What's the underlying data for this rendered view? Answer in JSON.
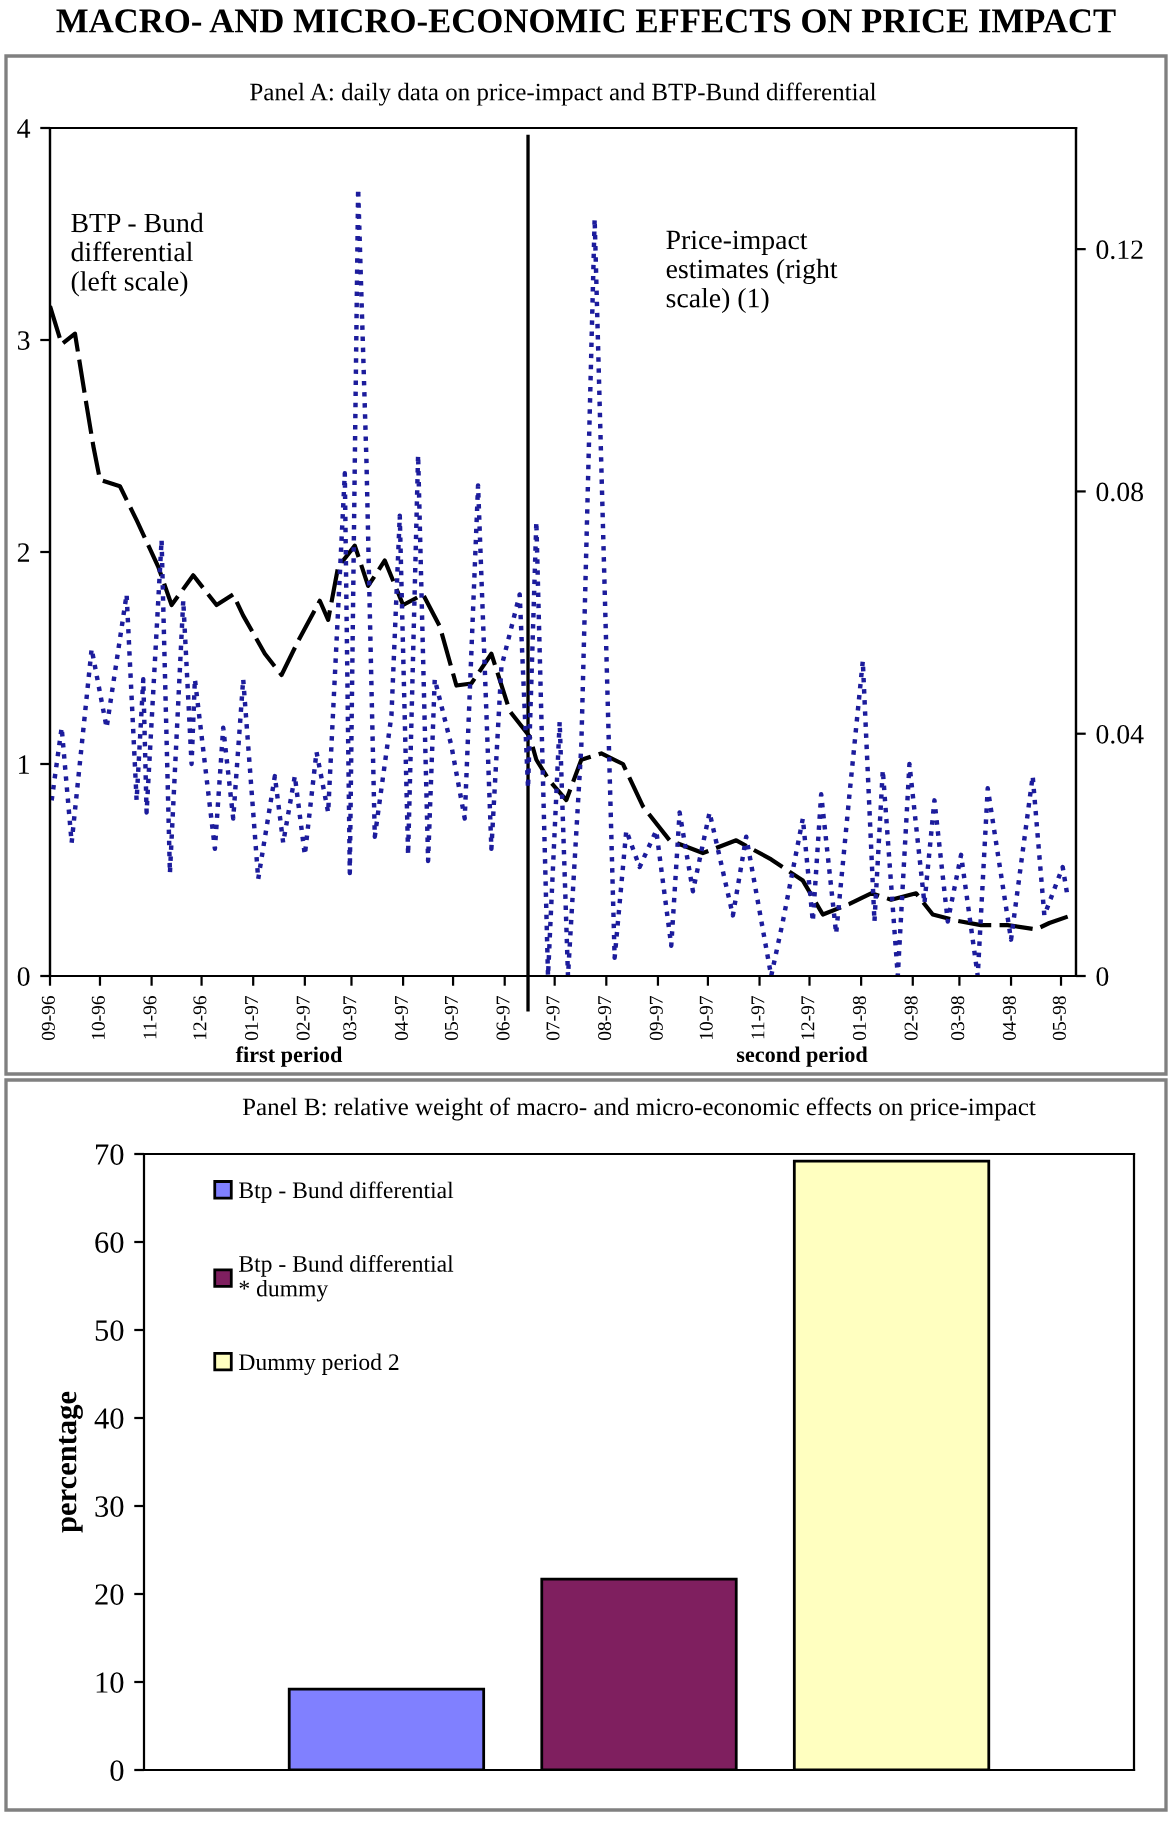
{
  "chart_data": [
    {
      "type": "line",
      "title": "MACRO- AND MICRO-ECONOMIC EFFECTS ON PRICE IMPACT",
      "subtitle": "Panel A: daily data on price-impact and BTP-Bund differential",
      "xlim": [
        "1996-09-01",
        "1998-05-10"
      ],
      "xticks": [
        {
          "value": "1996-09-01",
          "label": "09-96"
        },
        {
          "value": "1996-10-01",
          "label": "10-96"
        },
        {
          "value": "1996-11-01",
          "label": "11-96"
        },
        {
          "value": "1996-12-01",
          "label": "12-96"
        },
        {
          "value": "1997-01-01",
          "label": "01-97"
        },
        {
          "value": "1997-02-01",
          "label": "02-97"
        },
        {
          "value": "1997-03-01",
          "label": "03-97"
        },
        {
          "value": "1997-04-01",
          "label": "04-97"
        },
        {
          "value": "1997-05-01",
          "label": "05-97"
        },
        {
          "value": "1997-06-01",
          "label": "06-97"
        },
        {
          "value": "1997-07-01",
          "label": "07-97"
        },
        {
          "value": "1997-08-01",
          "label": "08-97"
        },
        {
          "value": "1997-09-01",
          "label": "09-97"
        },
        {
          "value": "1997-10-01",
          "label": "10-97"
        },
        {
          "value": "1997-11-01",
          "label": "11-97"
        },
        {
          "value": "1997-12-01",
          "label": "12-97"
        },
        {
          "value": "1998-01-01",
          "label": "01-98"
        },
        {
          "value": "1998-02-01",
          "label": "02-98"
        },
        {
          "value": "1998-03-01",
          "label": "03-98"
        },
        {
          "value": "1998-04-01",
          "label": "04-98"
        },
        {
          "value": "1998-05-01",
          "label": "05-98"
        }
      ],
      "ylim": [
        0,
        4
      ],
      "yticks": [
        0,
        1,
        2,
        3,
        4
      ],
      "y2lim": [
        0,
        0.14
      ],
      "y2ticks": [
        0,
        0.04,
        0.08,
        0.12
      ],
      "series": [
        {
          "name": "BTP - Bund\ndifferential\n(left scale)",
          "color": "#000000",
          "line_style": "dashed",
          "x": [
            "1996-09-01",
            "1996-09-08",
            "1996-09-16",
            "1996-09-23",
            "1996-09-27",
            "1996-10-01",
            "1996-10-13",
            "1996-10-23",
            "1996-11-05",
            "1996-11-13",
            "1996-11-26",
            "1996-12-10",
            "1996-12-20",
            "1996-12-26",
            "1997-01-08",
            "1997-01-18",
            "1997-01-28",
            "1997-02-10",
            "1997-02-15",
            "1997-02-21",
            "1997-03-03",
            "1997-03-11",
            "1997-03-21",
            "1997-04-01",
            "1997-04-13",
            "1997-04-23",
            "1997-05-03",
            "1997-05-12",
            "1997-05-24",
            "1997-06-04",
            "1997-06-16",
            "1997-06-20",
            "1997-06-28",
            "1997-07-08",
            "1997-07-17",
            "1997-07-29",
            "1997-08-11",
            "1997-08-23",
            "1997-09-08",
            "1997-09-28",
            "1997-10-18",
            "1997-11-08",
            "1997-11-27",
            "1997-12-09",
            "1997-12-25",
            "1998-01-07",
            "1998-01-19",
            "1998-02-03",
            "1998-02-13",
            "1998-02-28",
            "1998-03-14",
            "1998-03-30",
            "1998-04-16",
            "1998-04-24",
            "1998-05-05"
          ],
          "values": [
            3.16,
            2.98,
            3.03,
            2.69,
            2.5,
            2.34,
            2.31,
            2.15,
            1.93,
            1.75,
            1.89,
            1.75,
            1.8,
            1.7,
            1.52,
            1.42,
            1.58,
            1.77,
            1.68,
            1.93,
            2.03,
            1.84,
            1.96,
            1.75,
            1.8,
            1.65,
            1.37,
            1.38,
            1.52,
            1.25,
            1.13,
            1.02,
            0.92,
            0.83,
            1.02,
            1.05,
            1.0,
            0.8,
            0.64,
            0.58,
            0.64,
            0.55,
            0.45,
            0.29,
            0.34,
            0.39,
            0.36,
            0.39,
            0.29,
            0.26,
            0.24,
            0.24,
            0.22,
            0.25,
            0.28
          ]
        },
        {
          "name": "Price-impact\nestimates (right\nscale) (1)",
          "color": "#1c1c9c",
          "line_style": "dotted",
          "axis": "y2",
          "x": [
            "1996-09-02",
            "1996-09-08",
            "1996-09-14",
            "1996-09-26",
            "1996-10-05",
            "1996-10-17",
            "1996-10-23",
            "1996-10-27",
            "1996-10-29",
            "1996-11-07",
            "1996-11-12",
            "1996-11-20",
            "1996-11-25",
            "1996-11-27",
            "1996-12-09",
            "1996-12-14",
            "1996-12-20",
            "1996-12-26",
            "1997-01-04",
            "1997-01-14",
            "1997-01-19",
            "1997-01-26",
            "1997-02-01",
            "1997-02-08",
            "1997-02-15",
            "1997-02-25",
            "1997-02-28",
            "1997-03-05",
            "1997-03-10",
            "1997-03-15",
            "1997-03-25",
            "1997-03-30",
            "1997-04-04",
            "1997-04-10",
            "1997-04-16",
            "1997-04-20",
            "1997-04-30",
            "1997-05-08",
            "1997-05-16",
            "1997-05-24",
            "1997-05-30",
            "1997-06-10",
            "1997-06-15",
            "1997-06-20",
            "1997-06-27",
            "1997-07-04",
            "1997-07-09",
            "1997-07-17",
            "1997-07-25",
            "1997-08-06",
            "1997-08-13",
            "1997-08-21",
            "1997-08-31",
            "1997-09-09",
            "1997-09-14",
            "1997-09-22",
            "1997-10-02",
            "1997-10-16",
            "1997-10-24",
            "1997-11-08",
            "1997-11-15",
            "1997-11-27",
            "1997-12-03",
            "1997-12-08",
            "1997-12-17",
            "1997-12-25",
            "1998-01-02",
            "1998-01-09",
            "1998-01-14",
            "1998-01-23",
            "1998-01-30",
            "1998-02-08",
            "1998-02-14",
            "1998-02-22",
            "1998-03-02",
            "1998-03-12",
            "1998-03-18",
            "1998-04-01",
            "1998-04-14",
            "1998-04-21",
            "1998-05-02",
            "1998-05-05"
          ],
          "values": [
            0.029,
            0.041,
            0.022,
            0.054,
            0.041,
            0.063,
            0.029,
            0.049,
            0.027,
            0.072,
            0.017,
            0.062,
            0.035,
            0.049,
            0.021,
            0.041,
            0.026,
            0.049,
            0.016,
            0.033,
            0.022,
            0.033,
            0.02,
            0.037,
            0.027,
            0.083,
            0.017,
            0.13,
            0.085,
            0.023,
            0.043,
            0.076,
            0.02,
            0.086,
            0.019,
            0.049,
            0.038,
            0.026,
            0.081,
            0.021,
            0.051,
            0.063,
            0.031,
            0.075,
            0,
            0.042,
            0,
            0.038,
            0.125,
            0.003,
            0.024,
            0.018,
            0.024,
            0.005,
            0.027,
            0.014,
            0.027,
            0.01,
            0.023,
            0,
            0.009,
            0.026,
            0.009,
            0.03,
            0.007,
            0.03,
            0.052,
            0.009,
            0.034,
            0,
            0.035,
            0.012,
            0.029,
            0.009,
            0.02,
            0,
            0.031,
            0.006,
            0.033,
            0.01,
            0.018,
            0.013
          ]
        }
      ],
      "ref_lines": [
        {
          "axis": "x",
          "value": "1997-06-15",
          "color": "#000000",
          "line_style": "solid"
        }
      ],
      "annotations": [
        "first period",
        "second period"
      ]
    },
    {
      "type": "bar",
      "title": "Panel B: relative weight of macro- and micro-economic effects on price-impact",
      "ylabel": "percentage",
      "categories": [
        null,
        null,
        null
      ],
      "ylim": [
        0,
        70
      ],
      "yticks": [
        0,
        10,
        20,
        30,
        40,
        50,
        60,
        70
      ],
      "legend": "top left",
      "series": [
        {
          "name": "Btp - Bund differential",
          "color": "#8080ff",
          "values": [
            9.2,
            null,
            null
          ]
        },
        {
          "name": "Btp - Bund differential\n* dummy",
          "color": "#7f1f5f",
          "values": [
            null,
            21.7,
            null
          ]
        },
        {
          "name": "Dummy period 2",
          "color": "#ffffc0",
          "values": [
            null,
            null,
            69.2
          ]
        }
      ]
    }
  ]
}
